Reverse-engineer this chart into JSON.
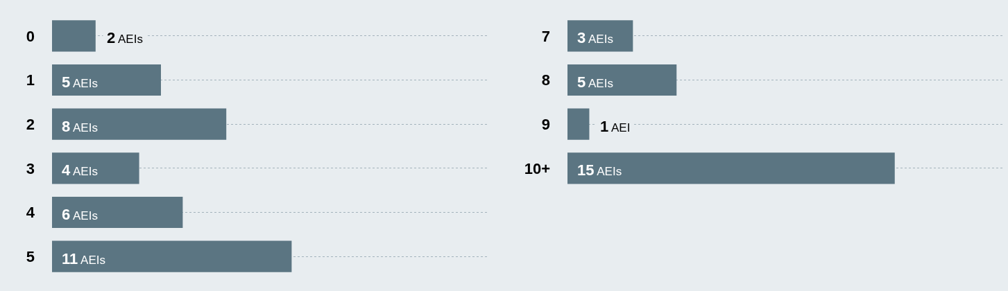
{
  "chart_data": [
    {
      "type": "bar",
      "orientation": "horizontal",
      "categories": [
        "0",
        "1",
        "2",
        "3",
        "4",
        "5"
      ],
      "values": [
        2,
        5,
        8,
        4,
        6,
        11
      ],
      "color": "#5b7582",
      "value_labels": [
        "2 AEIs",
        "5 AEIs",
        "8 AEIs",
        "4 AEIs",
        "6 AEIs",
        "11 AEIs"
      ],
      "xlim": [
        0,
        20
      ],
      "grid": "y",
      "tick_labels": "y"
    },
    {
      "type": "bar",
      "orientation": "horizontal",
      "categories": [
        "7",
        "8",
        "9",
        "10+"
      ],
      "values": [
        3,
        5,
        1,
        15
      ],
      "color": "#5b7582",
      "value_labels": [
        "3 AEIs",
        "5 AEIs",
        "1 AEI",
        "15 AEIs"
      ],
      "xlim": [
        0,
        20
      ],
      "grid": "y",
      "tick_labels": "y"
    }
  ]
}
